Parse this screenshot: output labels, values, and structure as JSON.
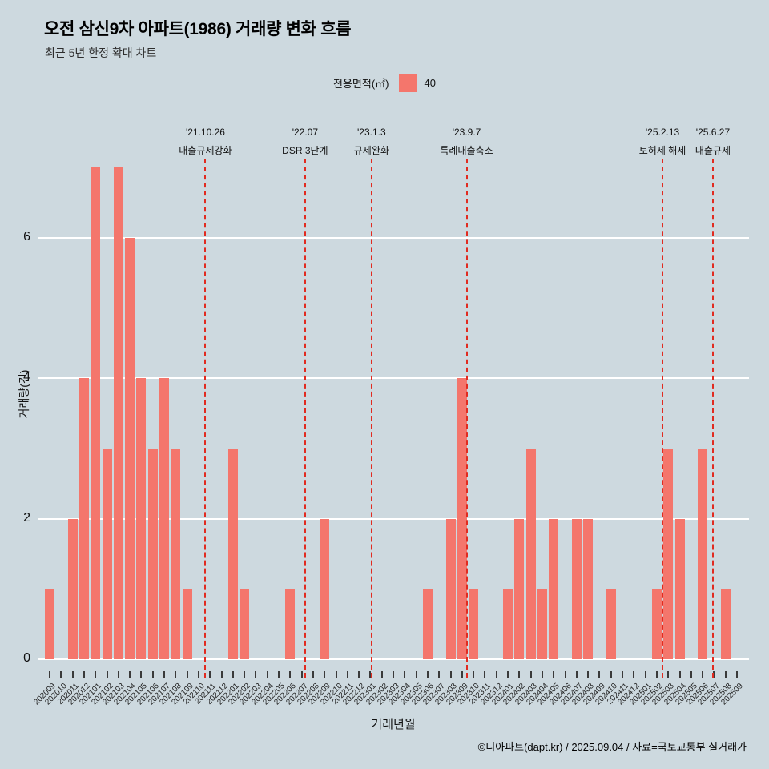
{
  "title": "오전 삼신9차 아파트(1986) 거래량 변화 흐름",
  "subtitle": "최근 5년 한정 확대 차트",
  "legend": {
    "title": "전용면적(㎡)",
    "items": [
      {
        "label": "40",
        "color": "#f4766c"
      }
    ]
  },
  "footer": "©디아파트(dapt.kr) / 2025.09.04 / 자료=국토교통부 실거래가",
  "colors": {
    "background": "#cdd9df",
    "bar": "#f4766c",
    "annotation_line": "#e12b20",
    "gridline": "#ffffff",
    "text": "#111111"
  },
  "chart_data": {
    "type": "bar",
    "title": "오전 삼신9차 아파트(1986) 거래량 변화 흐름",
    "xlabel": "거래년월",
    "ylabel": "거래량(건)",
    "yticks": [
      0,
      2,
      4,
      6
    ],
    "ylim": [
      0,
      7.1
    ],
    "grid": "horizontal-white",
    "legend_position": "top-center",
    "categories": [
      "202009",
      "202010",
      "202011",
      "202012",
      "202101",
      "202102",
      "202103",
      "202104",
      "202105",
      "202106",
      "202107",
      "202108",
      "202109",
      "202110",
      "202111",
      "202112",
      "202201",
      "202202",
      "202203",
      "202204",
      "202205",
      "202206",
      "202207",
      "202208",
      "202209",
      "202210",
      "202211",
      "202212",
      "202301",
      "202302",
      "202303",
      "202304",
      "202305",
      "202306",
      "202307",
      "202308",
      "202309",
      "202310",
      "202311",
      "202312",
      "202401",
      "202402",
      "202403",
      "202404",
      "202405",
      "202406",
      "202407",
      "202408",
      "202409",
      "202410",
      "202411",
      "202412",
      "202501",
      "202502",
      "202503",
      "202504",
      "202505",
      "202506",
      "202507",
      "202508",
      "202509"
    ],
    "values": [
      1,
      0,
      2,
      4,
      7,
      3,
      7,
      6,
      4,
      3,
      4,
      3,
      1,
      0,
      0,
      0,
      3,
      1,
      0,
      0,
      0,
      1,
      0,
      0,
      2,
      0,
      0,
      0,
      0,
      0,
      0,
      0,
      0,
      1,
      0,
      2,
      4,
      1,
      0,
      0,
      1,
      2,
      3,
      1,
      2,
      0,
      2,
      2,
      0,
      1,
      0,
      0,
      0,
      1,
      3,
      2,
      0,
      3,
      0,
      1,
      0
    ],
    "annotations": [
      {
        "date": "'21.10.26",
        "label": "대출규제강화",
        "x_index": 13.6
      },
      {
        "date": "'22.07",
        "label": "DSR 3단계",
        "x_index": 22.3
      },
      {
        "date": "'23.1.3",
        "label": "규제완화",
        "x_index": 28.1
      },
      {
        "date": "'23.9.7",
        "label": "특례대출축소",
        "x_index": 36.4
      },
      {
        "date": "'25.2.13",
        "label": "토허제 해제",
        "x_index": 53.5
      },
      {
        "date": "'25.6.27",
        "label": "대출규제",
        "x_index": 57.9
      }
    ]
  }
}
